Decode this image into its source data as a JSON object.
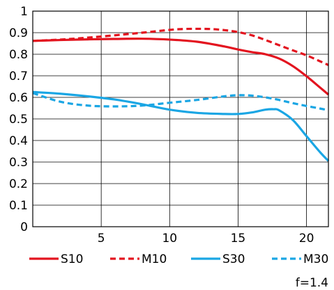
{
  "chart_data": {
    "type": "line",
    "title": "",
    "xlabel": "",
    "ylabel": "",
    "xlim": [
      0,
      21.6
    ],
    "ylim": [
      0,
      1
    ],
    "x_ticks": [
      "5",
      "10",
      "15",
      "20"
    ],
    "y_ticks": [
      "0",
      "0.1",
      "0.2",
      "0.3",
      "0.4",
      "0.5",
      "0.6",
      "0.7",
      "0.8",
      "0.9",
      "1"
    ],
    "grid": true,
    "legend_position": "bottom",
    "annotation": "f=1.4",
    "series": [
      {
        "name": "S10",
        "color": "#e3141f",
        "style": "solid",
        "x": [
          0,
          2,
          4,
          6,
          8,
          10,
          12,
          14,
          15,
          16,
          17,
          18,
          19,
          20,
          21,
          21.6
        ],
        "y": [
          0.862,
          0.866,
          0.869,
          0.871,
          0.872,
          0.868,
          0.858,
          0.836,
          0.822,
          0.81,
          0.8,
          0.78,
          0.745,
          0.698,
          0.645,
          0.613
        ]
      },
      {
        "name": "M10",
        "color": "#e3141f",
        "style": "dashed",
        "x": [
          0,
          2,
          4,
          6,
          8,
          10,
          11,
          12,
          13,
          14,
          15,
          16,
          17,
          18,
          19,
          20,
          21,
          21.6
        ],
        "y": [
          0.862,
          0.868,
          0.877,
          0.888,
          0.9,
          0.913,
          0.917,
          0.918,
          0.917,
          0.912,
          0.903,
          0.888,
          0.866,
          0.842,
          0.818,
          0.795,
          0.767,
          0.75
        ]
      },
      {
        "name": "S30",
        "color": "#1aa6e4",
        "style": "solid",
        "x": [
          0,
          2,
          4,
          6,
          8,
          10,
          12,
          14,
          15,
          16,
          17,
          17.6,
          18,
          19,
          20,
          21,
          21.6
        ],
        "y": [
          0.625,
          0.617,
          0.605,
          0.59,
          0.568,
          0.543,
          0.528,
          0.523,
          0.523,
          0.53,
          0.543,
          0.545,
          0.54,
          0.495,
          0.42,
          0.345,
          0.305
        ]
      },
      {
        "name": "M30",
        "color": "#1aa6e4",
        "style": "dashed",
        "x": [
          0,
          2,
          4,
          6,
          8,
          10,
          12,
          14,
          15,
          16,
          17,
          18,
          19,
          20,
          21,
          21.6
        ],
        "y": [
          0.62,
          0.58,
          0.562,
          0.558,
          0.562,
          0.575,
          0.588,
          0.605,
          0.61,
          0.608,
          0.6,
          0.588,
          0.573,
          0.56,
          0.548,
          0.54
        ]
      }
    ]
  }
}
